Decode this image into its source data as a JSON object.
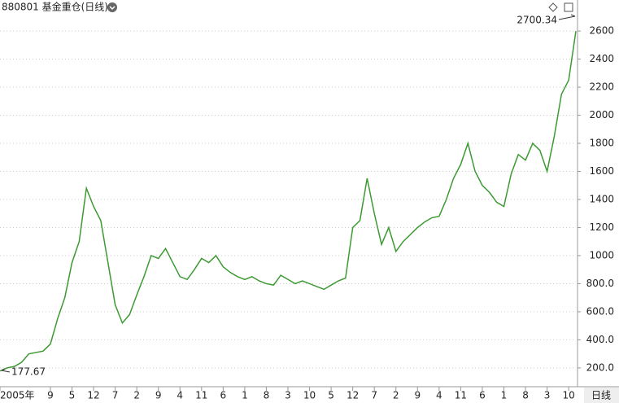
{
  "chart_data": {
    "type": "line",
    "title": "880801 基金重仓(日线)",
    "categories": [
      "2005年",
      null,
      null,
      null,
      null,
      null,
      null,
      "9",
      null,
      null,
      "5",
      null,
      null,
      "12",
      null,
      null,
      "7",
      null,
      null,
      "2",
      null,
      null,
      "9",
      null,
      null,
      "4",
      null,
      null,
      "11",
      null,
      null,
      "6",
      null,
      null,
      "1",
      null,
      null,
      "8",
      null,
      null,
      "3",
      null,
      null,
      "10",
      null,
      null,
      "5",
      null,
      null,
      "12",
      null,
      null,
      "7",
      null,
      null,
      "2",
      null,
      null,
      "9",
      null,
      null,
      "4",
      null,
      null,
      "11",
      null,
      null,
      "6",
      null,
      null,
      "1",
      null,
      null,
      "8",
      null,
      null,
      "3",
      null,
      null,
      "10",
      null
    ],
    "series": [
      {
        "color": "#3c9a32",
        "values": [
          178,
          200,
          210,
          240,
          300,
          310,
          320,
          370,
          550,
          700,
          950,
          1100,
          1480,
          1350,
          1250,
          950,
          650,
          520,
          580,
          720,
          850,
          1000,
          980,
          1050,
          950,
          850,
          830,
          900,
          980,
          950,
          1000,
          920,
          880,
          850,
          830,
          850,
          820,
          800,
          790,
          860,
          830,
          800,
          820,
          800,
          780,
          760,
          790,
          820,
          840,
          1200,
          1250,
          1550,
          1300,
          1080,
          1200,
          1030,
          1100,
          1150,
          1200,
          1240,
          1270,
          1280,
          1400,
          1550,
          1650,
          1800,
          1600,
          1500,
          1450,
          1380,
          1350,
          1580,
          1720,
          1680,
          1800,
          1750,
          1600,
          1850,
          2150,
          2250,
          2600
        ]
      }
    ],
    "ylim": [
      66,
      2821
    ],
    "yticks": [
      {
        "value": 200,
        "label": "200.0"
      },
      {
        "value": 400,
        "label": "400.0"
      },
      {
        "value": 600,
        "label": "600.0"
      },
      {
        "value": 800,
        "label": "800.0"
      },
      1000,
      1200,
      1400,
      1600,
      1800,
      2000,
      2200,
      2400,
      2600
    ],
    "grid": true,
    "min_label": 177.67,
    "max_label": 2700.34,
    "period_button": "日线"
  }
}
